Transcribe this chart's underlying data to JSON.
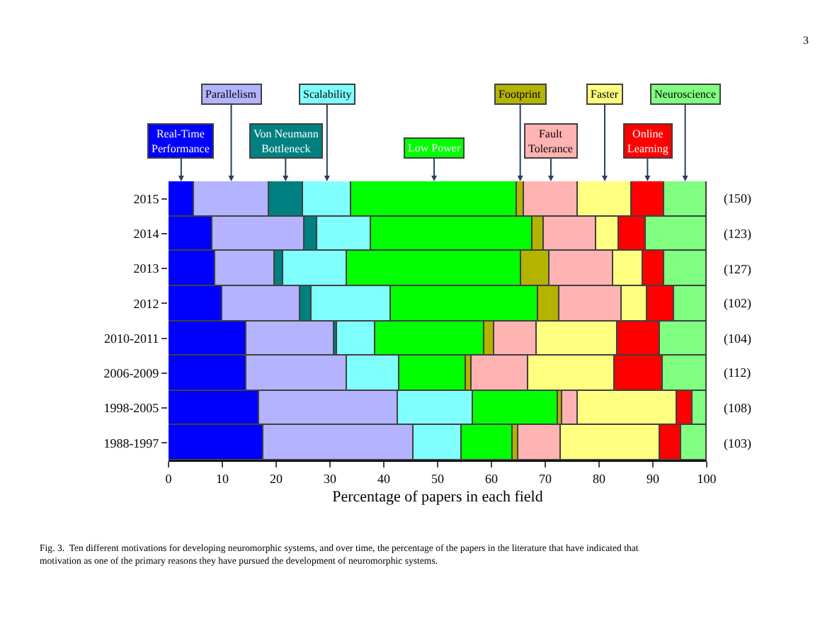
{
  "chart_data": {
    "type": "bar",
    "orientation": "horizontal",
    "stacked": true,
    "xlabel": "Percentage of papers in each field",
    "categories": [
      "2015",
      "2014",
      "2013",
      "2012",
      "2010-2011",
      "2006-2009",
      "1998-2005",
      "1988-1997"
    ],
    "series": [
      {
        "name": "Real-Time Performance",
        "color": "#0000ff",
        "values": [
          4.7,
          8.2,
          8.8,
          9.9,
          14.5,
          14.4,
          16.8,
          17.5
        ]
      },
      {
        "name": "Parallelism",
        "color": "#b3b3ff",
        "values": [
          13.9,
          17.0,
          10.9,
          14.6,
          16.2,
          18.7,
          25.9,
          28.1
        ]
      },
      {
        "name": "Von Neumann Bottleneck",
        "color": "#008080",
        "values": [
          6.3,
          2.5,
          1.7,
          2.0,
          0.7,
          0,
          0,
          0
        ]
      },
      {
        "name": "Scalability",
        "color": "#80ffff",
        "values": [
          9.1,
          9.8,
          11.8,
          14.7,
          7.0,
          9.8,
          13.9,
          8.8
        ]
      },
      {
        "name": "Low Power",
        "color": "#00ff00",
        "values": [
          30.7,
          30.0,
          32.2,
          27.4,
          20.4,
          12.4,
          15.7,
          9.6
        ]
      },
      {
        "name": "Footprint",
        "color": "#b3b300",
        "values": [
          1.3,
          2.3,
          5.4,
          3.9,
          1.7,
          1.0,
          0.9,
          1.1
        ]
      },
      {
        "name": "Fault Tolerance",
        "color": "#ffb3b3",
        "values": [
          10.1,
          9.8,
          11.8,
          11.7,
          7.8,
          10.6,
          2.9,
          7.7
        ]
      },
      {
        "name": "Faster",
        "color": "#ffff80",
        "values": [
          9.9,
          4.1,
          5.6,
          4.8,
          15.2,
          16.0,
          18.4,
          18.4
        ]
      },
      {
        "name": "Online Learning",
        "color": "#ff0000",
        "values": [
          6.0,
          5.1,
          3.9,
          5.0,
          7.9,
          8.9,
          2.9,
          4.0
        ]
      },
      {
        "name": "Neuroscience",
        "color": "#80ff80",
        "values": [
          8.0,
          11.2,
          7.9,
          6.0,
          8.6,
          8.2,
          2.6,
          4.8
        ]
      }
    ],
    "xlim": [
      0,
      100
    ],
    "xticks": [
      0,
      10,
      20,
      30,
      40,
      50,
      60,
      70,
      80,
      90,
      100
    ],
    "legend": "top",
    "y2_categories": [
      "(150)",
      "(123)",
      "(127)",
      "(102)",
      "(104)",
      "(112)",
      "(108)",
      "(103)"
    ],
    "annotations": [
      "3",
      "Fig. 3.  Ten different motivations for developing neuromorphic systems, and over time, the percentage of the papers in the literature that have indicated that\nmotivation as one of the primary reasons they have pursued the development of neuromorphic systems."
    ]
  }
}
